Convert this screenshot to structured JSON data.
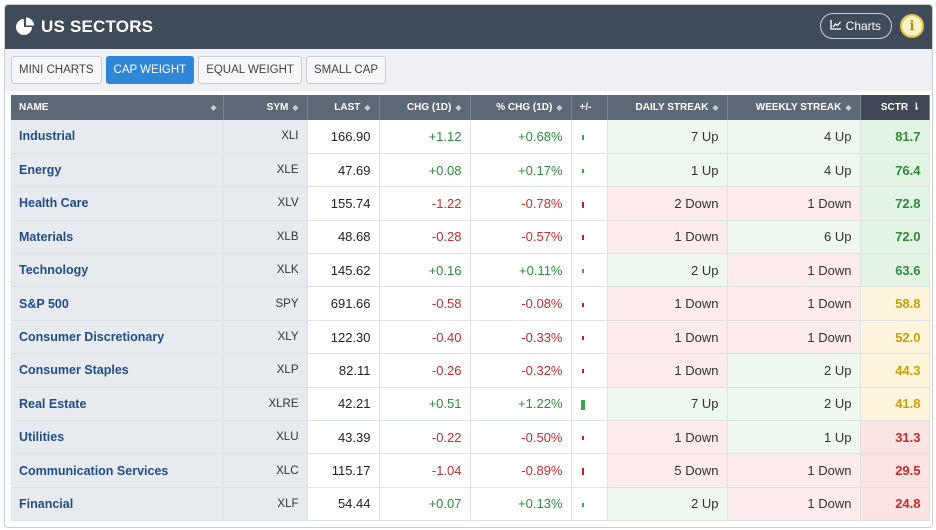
{
  "header": {
    "title": "US SECTORS",
    "charts_label": "Charts",
    "info_label": "i"
  },
  "tabs": [
    {
      "label": "MINI CHARTS",
      "active": false
    },
    {
      "label": "CAP WEIGHT",
      "active": true
    },
    {
      "label": "EQUAL WEIGHT",
      "active": false
    },
    {
      "label": "SMALL CAP",
      "active": false
    }
  ],
  "columns": {
    "name": "NAME",
    "sym": "SYM",
    "last": "LAST",
    "chg": "CHG (1D)",
    "pct": "% CHG (1D)",
    "bar": "+/-",
    "daily": "DAILY STREAK",
    "weekly": "WEEKLY STREAK",
    "sctr": "SCTR"
  },
  "colors": {
    "positive": "#2e8b3e",
    "negative": "#c72c2c",
    "sctr_high": "#2f8a3a",
    "sctr_mid": "#c9a100",
    "sctr_low": "#c62c2c"
  },
  "rows": [
    {
      "name": "Industrial",
      "sym": "XLI",
      "last": "166.90",
      "chg": "+1.12",
      "pct": "+0.68%",
      "bar": 0.68,
      "daily": "7 Up",
      "weekly": "4 Up",
      "sctr": "81.7"
    },
    {
      "name": "Energy",
      "sym": "XLE",
      "last": "47.69",
      "chg": "+0.08",
      "pct": "+0.17%",
      "bar": 0.17,
      "daily": "1 Up",
      "weekly": "4 Up",
      "sctr": "76.4"
    },
    {
      "name": "Health Care",
      "sym": "XLV",
      "last": "155.74",
      "chg": "-1.22",
      "pct": "-0.78%",
      "bar": -0.78,
      "daily": "2 Down",
      "weekly": "1 Down",
      "sctr": "72.8"
    },
    {
      "name": "Materials",
      "sym": "XLB",
      "last": "48.68",
      "chg": "-0.28",
      "pct": "-0.57%",
      "bar": -0.57,
      "daily": "1 Down",
      "weekly": "6 Up",
      "sctr": "72.0"
    },
    {
      "name": "Technology",
      "sym": "XLK",
      "last": "145.62",
      "chg": "+0.16",
      "pct": "+0.11%",
      "bar": 0.11,
      "daily": "2 Up",
      "weekly": "1 Down",
      "sctr": "63.6"
    },
    {
      "name": "S&P 500",
      "sym": "SPY",
      "last": "691.66",
      "chg": "-0.58",
      "pct": "-0.08%",
      "bar": -0.08,
      "daily": "1 Down",
      "weekly": "1 Down",
      "sctr": "58.8"
    },
    {
      "name": "Consumer Discretionary",
      "sym": "XLY",
      "last": "122.30",
      "chg": "-0.40",
      "pct": "-0.33%",
      "bar": -0.33,
      "daily": "1 Down",
      "weekly": "1 Down",
      "sctr": "52.0"
    },
    {
      "name": "Consumer Staples",
      "sym": "XLP",
      "last": "82.11",
      "chg": "-0.26",
      "pct": "-0.32%",
      "bar": -0.32,
      "daily": "1 Down",
      "weekly": "2 Up",
      "sctr": "44.3"
    },
    {
      "name": "Real Estate",
      "sym": "XLRE",
      "last": "42.21",
      "chg": "+0.51",
      "pct": "+1.22%",
      "bar": 1.22,
      "daily": "7 Up",
      "weekly": "2 Up",
      "sctr": "41.8"
    },
    {
      "name": "Utilities",
      "sym": "XLU",
      "last": "43.39",
      "chg": "-0.22",
      "pct": "-0.50%",
      "bar": -0.5,
      "daily": "1 Down",
      "weekly": "1 Up",
      "sctr": "31.3"
    },
    {
      "name": "Communication Services",
      "sym": "XLC",
      "last": "115.17",
      "chg": "-1.04",
      "pct": "-0.89%",
      "bar": -0.89,
      "daily": "5 Down",
      "weekly": "1 Down",
      "sctr": "29.5"
    },
    {
      "name": "Financial",
      "sym": "XLF",
      "last": "54.44",
      "chg": "+0.07",
      "pct": "+0.13%",
      "bar": 0.13,
      "daily": "2 Up",
      "weekly": "1 Down",
      "sctr": "24.8"
    }
  ]
}
